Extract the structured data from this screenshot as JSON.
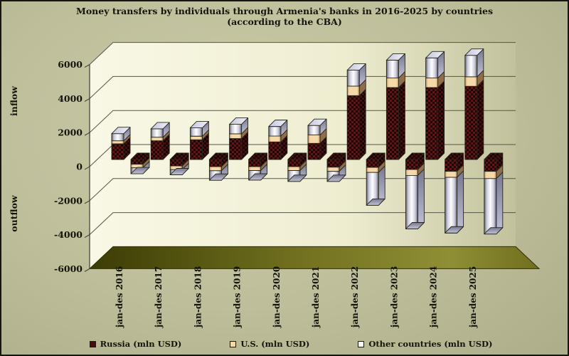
{
  "title": {
    "line1": "Money transfers by individuals through Armenia's banks in 2016-2025 by countries",
    "line2": "(according to the CBA)"
  },
  "axis": {
    "inflow_label": "inflow",
    "outflow_label": "outflow",
    "y_tick_labels": [
      "6000",
      "4000",
      "2000",
      "0",
      "-2000",
      "-4000",
      "-6000"
    ],
    "y_tick_values": [
      6000,
      4000,
      2000,
      0,
      -2000,
      -4000,
      -6000
    ]
  },
  "legend": [
    {
      "label": "Russia (mln USD)",
      "color": "#4a0d0d"
    },
    {
      "label": "U.S. (mln USD)",
      "color": "#f6d9a9"
    },
    {
      "label": "Other countries (mln USD)",
      "color": "#ffffff"
    }
  ],
  "chart_data": {
    "type": "bar",
    "style": "3d-stacked-inflow-outflow",
    "title": "Money transfers by individuals through Armenia's banks in 2016-2025 by countries (according to the CBA)",
    "categories": [
      "jan-des 2016",
      "jan-des 2017",
      "jan-des 2018",
      "jan-des 2019",
      "jan-des 2020",
      "jan-des 2021",
      "jan-des 2022",
      "jan-des 2023",
      "jan-des 2024",
      "jan-des 2025"
    ],
    "series": [
      {
        "name": "Russia (mln USD)",
        "direction": "inflow",
        "values": [
          920,
          1100,
          1160,
          1230,
          1030,
          950,
          3750,
          4230,
          4230,
          4300
        ]
      },
      {
        "name": "U.S. (mln USD)",
        "direction": "inflow",
        "values": [
          180,
          210,
          210,
          280,
          350,
          490,
          560,
          560,
          560,
          560
        ]
      },
      {
        "name": "Other countries (mln USD)",
        "direction": "inflow",
        "values": [
          420,
          490,
          490,
          560,
          560,
          560,
          940,
          1050,
          1180,
          1260
        ]
      },
      {
        "name": "Russia (mln USD)",
        "direction": "outflow",
        "values": [
          -280,
          -380,
          -420,
          -420,
          -420,
          -450,
          -460,
          -590,
          -700,
          -700
        ]
      },
      {
        "name": "U.S. (mln USD)",
        "direction": "outflow",
        "values": [
          -210,
          -220,
          -240,
          -230,
          -230,
          -250,
          -300,
          -350,
          -350,
          -420
        ]
      },
      {
        "name": "Other countries (mln USD)",
        "direction": "outflow",
        "values": [
          -350,
          -300,
          -560,
          -560,
          -640,
          -590,
          -1930,
          -3140,
          -3270,
          -3260
        ]
      }
    ],
    "ylim": [
      -6000,
      6000
    ],
    "grid": true,
    "legend_position": "bottom"
  }
}
